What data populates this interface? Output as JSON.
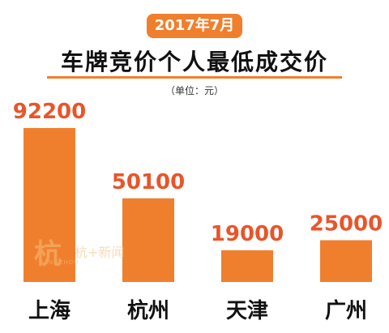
{
  "header": {
    "date_badge": "2017年7月",
    "title": "车牌竞价个人最低成交价",
    "unit": "（单位：元）"
  },
  "watermark": {
    "mark": "杭",
    "sub": "HANGZHOU",
    "text": "杭+新闻"
  },
  "colors": {
    "accent": "#f07f2d",
    "bar": "#f07f2d",
    "value_label": "#e8552a",
    "category_label": "#111111"
  },
  "chart_data": {
    "type": "bar",
    "title": "车牌竞价个人最低成交价",
    "subtitle": "2017年7月",
    "unit": "（单位：元）",
    "categories": [
      "上海",
      "杭州",
      "天津",
      "广州"
    ],
    "values": [
      92200,
      50100,
      19000,
      25000
    ],
    "ylim": [
      0,
      92200
    ],
    "grid": false,
    "legend": "none"
  }
}
